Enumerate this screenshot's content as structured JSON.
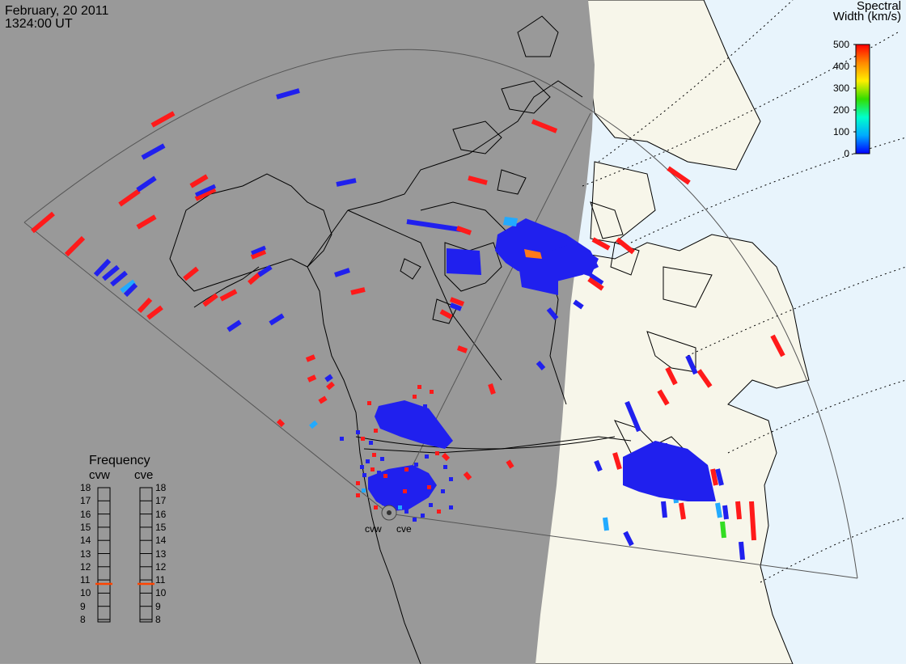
{
  "header": {
    "date": "February, 20 2011",
    "time": "1324:00 UT"
  },
  "colorbar": {
    "title_line1": "Spectral",
    "title_line2": "Width (km/s)",
    "ticks": [
      "500",
      "400",
      "300",
      "200",
      "100",
      "0"
    ],
    "range": [
      0,
      500
    ],
    "colors": [
      "#0000ff",
      "#00aaff",
      "#00ffcc",
      "#33dd00",
      "#ffee00",
      "#ff8800",
      "#ff0000"
    ]
  },
  "frequency_panel": {
    "title": "Frequency",
    "radars": [
      "cvw",
      "cve"
    ],
    "ticks": [
      "18",
      "17",
      "16",
      "15",
      "14",
      "13",
      "12",
      "11",
      "10",
      "9",
      "8"
    ],
    "selected": {
      "cvw": 10.7,
      "cve": 10.7
    },
    "marker_color": "#ff4400"
  },
  "radar_labels": [
    "cvw",
    "cve"
  ],
  "map": {
    "night_color": "#999999",
    "day_color": "#f7f6ea",
    "ocean_color": "#e8f4fc",
    "scatter_blue": "#2020ee",
    "scatter_red": "#ff1a1a",
    "scatter_cyan": "#22aaff",
    "scatter_orange": "#ff7a1a",
    "scatter_green": "#33dd22"
  }
}
